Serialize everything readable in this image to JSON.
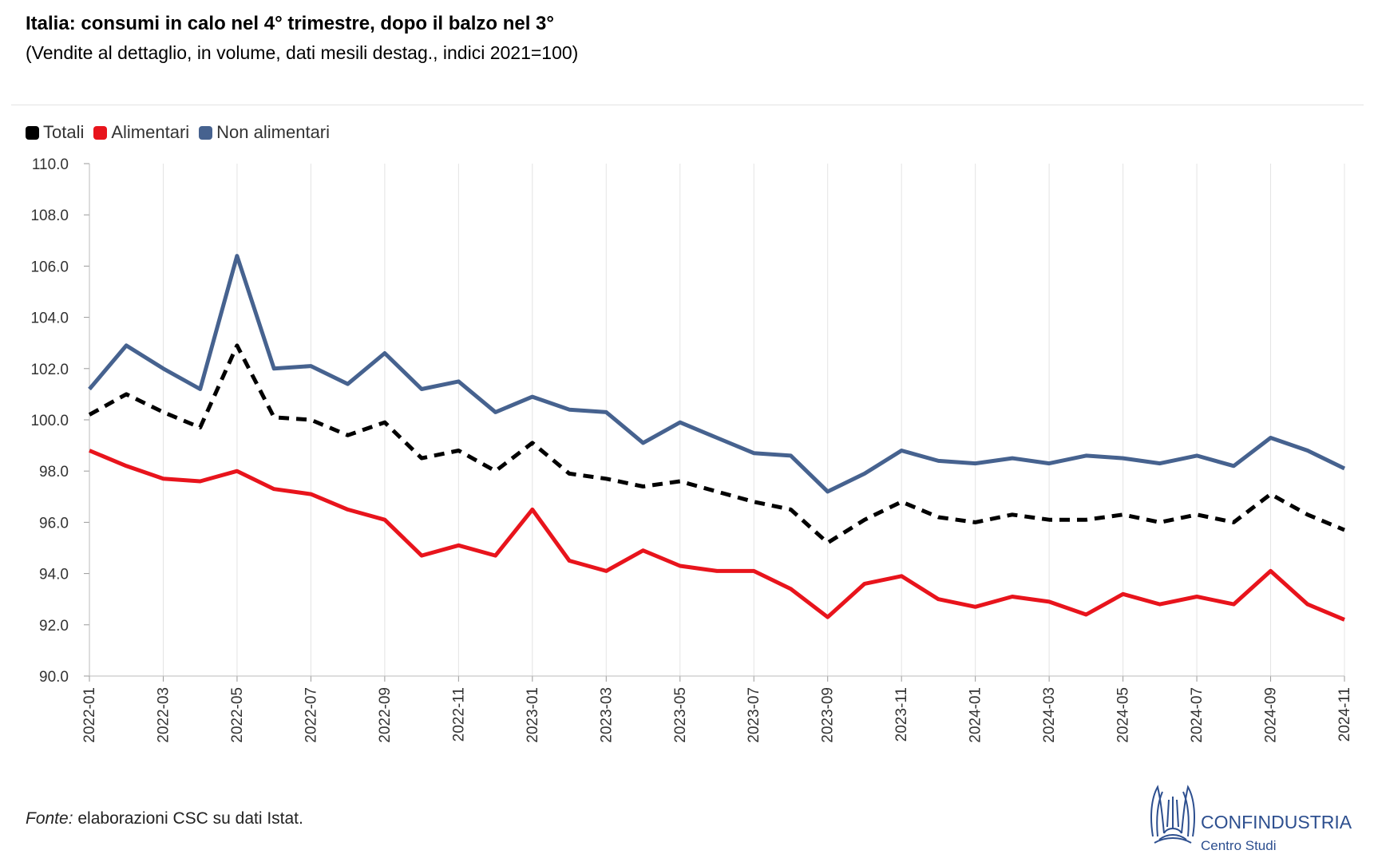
{
  "header": {
    "title": "Italia: consumi in calo nel 4° trimestre, dopo il balzo nel 3°",
    "subtitle": "(Vendite al dettaglio, in volume, dati mesili destag., indici 2021=100)"
  },
  "footer": {
    "source_label": "Fonte:",
    "source_text": " elaborazioni CSC su dati Istat.",
    "logo_name": "CONFINDUSTRIA",
    "logo_sub": "Centro Studi"
  },
  "colors": {
    "totali": "#000000",
    "alimentari": "#e8141c",
    "non_alimentari": "#46628f"
  },
  "chart_data": {
    "type": "line",
    "title": "Italia: consumi in calo nel 4° trimestre, dopo il balzo nel 3°",
    "subtitle": "(Vendite al dettaglio, in volume, dati mesili destag., indici 2021=100)",
    "xlabel": "",
    "ylabel": "",
    "ylim": [
      90,
      110
    ],
    "yticks": [
      90,
      92,
      94,
      96,
      98,
      100,
      102,
      104,
      106,
      108,
      110
    ],
    "ytick_labels": [
      "90.0",
      "92.0",
      "94.0",
      "96.0",
      "98.0",
      "100.0",
      "102.0",
      "104.0",
      "106.0",
      "108.0",
      "110.0"
    ],
    "grid": "vertical",
    "legend": "top-left",
    "x": [
      "2022-01",
      "2022-02",
      "2022-03",
      "2022-04",
      "2022-05",
      "2022-06",
      "2022-07",
      "2022-08",
      "2022-09",
      "2022-10",
      "2022-11",
      "2022-12",
      "2023-01",
      "2023-02",
      "2023-03",
      "2023-04",
      "2023-05",
      "2023-06",
      "2023-07",
      "2023-08",
      "2023-09",
      "2023-10",
      "2023-11",
      "2023-12",
      "2024-01",
      "2024-02",
      "2024-03",
      "2024-04",
      "2024-05",
      "2024-06",
      "2024-07",
      "2024-08",
      "2024-09",
      "2024-10",
      "2024-11"
    ],
    "xtick_labels": [
      "2022-01",
      "2022-03",
      "2022-05",
      "2022-07",
      "2022-09",
      "2022-11",
      "2023-01",
      "2023-03",
      "2023-05",
      "2023-07",
      "2023-09",
      "2023-11",
      "2024-01",
      "2024-03",
      "2024-05",
      "2024-07",
      "2024-09",
      "2024-11"
    ],
    "series": [
      {
        "name": "Totali",
        "color": "#000000",
        "dash": true,
        "values": [
          100.2,
          101.0,
          100.3,
          99.7,
          102.9,
          100.1,
          100.0,
          99.4,
          99.9,
          98.5,
          98.8,
          98.0,
          99.1,
          97.9,
          97.7,
          97.4,
          97.6,
          97.2,
          96.8,
          96.5,
          95.2,
          96.1,
          96.8,
          96.2,
          96.0,
          96.3,
          96.1,
          96.1,
          96.3,
          96.0,
          96.3,
          96.0,
          97.1,
          96.3,
          95.7
        ]
      },
      {
        "name": "Alimentari",
        "color": "#e8141c",
        "dash": false,
        "values": [
          98.8,
          98.2,
          97.7,
          97.6,
          98.0,
          97.3,
          97.1,
          96.5,
          96.1,
          94.7,
          95.1,
          94.7,
          96.5,
          94.5,
          94.1,
          94.9,
          94.3,
          94.1,
          94.1,
          93.4,
          92.3,
          93.6,
          93.9,
          93.0,
          92.7,
          93.1,
          92.9,
          92.4,
          93.2,
          92.8,
          93.1,
          92.8,
          94.1,
          92.8,
          92.2
        ]
      },
      {
        "name": "Non alimentari",
        "color": "#46628f",
        "dash": false,
        "values": [
          101.2,
          102.9,
          102.0,
          101.2,
          106.4,
          102.0,
          102.1,
          101.4,
          102.6,
          101.2,
          101.5,
          100.3,
          100.9,
          100.4,
          100.3,
          99.1,
          99.9,
          99.3,
          98.7,
          98.6,
          97.2,
          97.9,
          98.8,
          98.4,
          98.3,
          98.5,
          98.3,
          98.6,
          98.5,
          98.3,
          98.6,
          98.2,
          99.3,
          98.8,
          98.1
        ]
      }
    ]
  }
}
